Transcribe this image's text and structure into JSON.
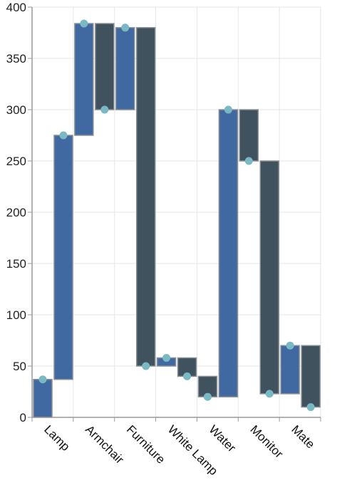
{
  "chart_data": {
    "type": "bar",
    "subtype": "floating-waterfall",
    "title": "",
    "xlabel": "",
    "ylabel": "",
    "ylim": [
      0,
      400
    ],
    "yticks": [
      0,
      50,
      100,
      150,
      200,
      250,
      300,
      350,
      400
    ],
    "grid": true,
    "legend": "none",
    "categories": [
      "Lamp",
      "Armchair",
      "Furniture",
      "White Lamp",
      "Water",
      "Monitor",
      "Mate"
    ],
    "bars": [
      {
        "category": "Lamp",
        "kind": "increase",
        "low": 0,
        "high": 37,
        "marker": 37
      },
      {
        "category": "Lamp",
        "kind": "increase",
        "low": 37,
        "high": 275,
        "marker": 275
      },
      {
        "category": "Armchair",
        "kind": "increase",
        "low": 275,
        "high": 384,
        "marker": 384
      },
      {
        "category": "Armchair",
        "kind": "decrease",
        "low": 300,
        "high": 384,
        "marker": 300
      },
      {
        "category": "Furniture",
        "kind": "increase",
        "low": 300,
        "high": 380,
        "marker": 380
      },
      {
        "category": "Furniture",
        "kind": "decrease",
        "low": 50,
        "high": 380,
        "marker": 50
      },
      {
        "category": "White Lamp",
        "kind": "increase",
        "low": 50,
        "high": 58,
        "marker": 58
      },
      {
        "category": "White Lamp",
        "kind": "decrease",
        "low": 40,
        "high": 58,
        "marker": 40
      },
      {
        "category": "Water",
        "kind": "decrease",
        "low": 20,
        "high": 40,
        "marker": 20
      },
      {
        "category": "Water",
        "kind": "increase",
        "low": 20,
        "high": 300,
        "marker": 300
      },
      {
        "category": "Monitor",
        "kind": "decrease",
        "low": 250,
        "high": 300,
        "marker": 250
      },
      {
        "category": "Monitor",
        "kind": "decrease",
        "low": 23,
        "high": 250,
        "marker": 23
      },
      {
        "category": "Mate",
        "kind": "increase",
        "low": 23,
        "high": 70,
        "marker": 70
      },
      {
        "category": "Mate",
        "kind": "decrease",
        "low": 10,
        "high": 70,
        "marker": 10
      }
    ],
    "colors": {
      "increase": "#4169a1",
      "decrease": "#3f525e",
      "bar_stroke": "#8a8f96",
      "marker": "#7ab8c4",
      "grid": "#e6e6e6",
      "axis": "#9a9a9a"
    }
  }
}
